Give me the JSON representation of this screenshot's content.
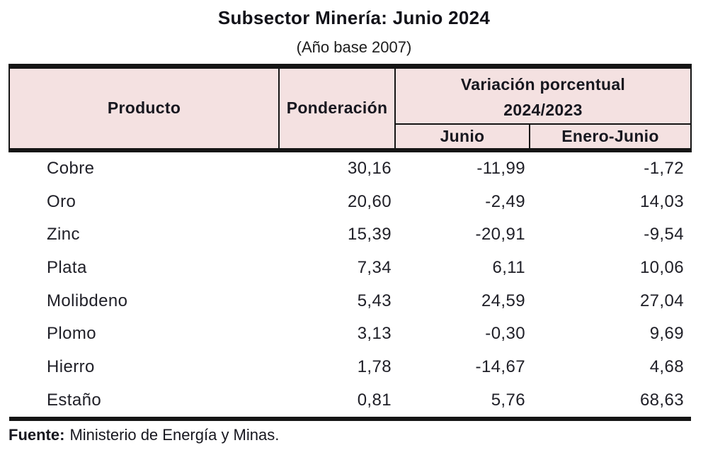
{
  "title": "Subsector Minería: Junio 2024",
  "subtitle": "(Año base 2007)",
  "colors": {
    "header_bg": "#f4e1e1",
    "rule": "#151515",
    "text": "#1d1d1d"
  },
  "footer": {
    "label": "Fuente:",
    "text": "Ministerio de Energía y Minas."
  },
  "chart_data": {
    "type": "table",
    "title": "Subsector Minería: Junio 2024",
    "subtitle": "(Año base 2007)",
    "columns": {
      "producto": "Producto",
      "ponderacion": "Ponderación",
      "variacion_group_line1": "Variación porcentual",
      "variacion_group_line2": "2024/2023",
      "junio": "Junio",
      "enero_junio": "Enero-Junio"
    },
    "rows": [
      {
        "producto": "Cobre",
        "ponderacion": "30,16",
        "junio": "-11,99",
        "enero_junio": "-1,72"
      },
      {
        "producto": "Oro",
        "ponderacion": "20,60",
        "junio": "-2,49",
        "enero_junio": "14,03"
      },
      {
        "producto": "Zinc",
        "ponderacion": "15,39",
        "junio": "-20,91",
        "enero_junio": "-9,54"
      },
      {
        "producto": "Plata",
        "ponderacion": "7,34",
        "junio": "6,11",
        "enero_junio": "10,06"
      },
      {
        "producto": "Molibdeno",
        "ponderacion": "5,43",
        "junio": "24,59",
        "enero_junio": "27,04"
      },
      {
        "producto": "Plomo",
        "ponderacion": "3,13",
        "junio": "-0,30",
        "enero_junio": "9,69"
      },
      {
        "producto": "Hierro",
        "ponderacion": "1,78",
        "junio": "-14,67",
        "enero_junio": "4,68"
      },
      {
        "producto": "Estaño",
        "ponderacion": "0,81",
        "junio": "5,76",
        "enero_junio": "68,63"
      }
    ],
    "source": "Fuente: Ministerio de Energía y Minas."
  }
}
